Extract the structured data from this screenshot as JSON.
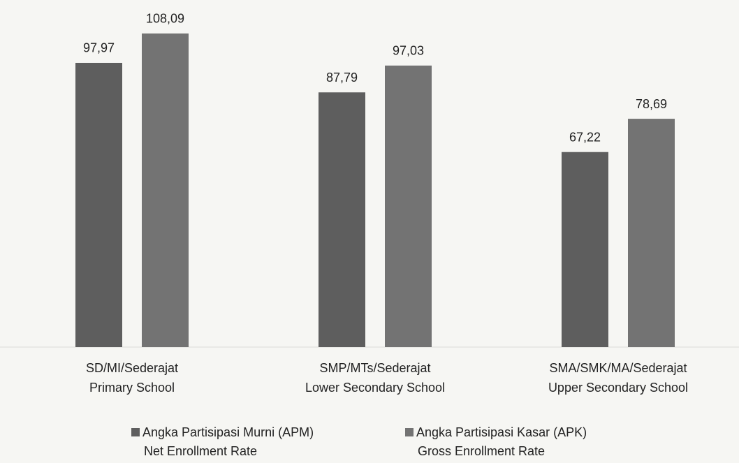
{
  "chart_data": {
    "type": "bar",
    "categories": [
      [
        "SD/MI/Sederajat",
        "Primary School"
      ],
      [
        "SMP/MTs/Sederajat",
        "Lower Secondary School"
      ],
      [
        "SMA/SMK/MA/Sederajat",
        "Upper Secondary School"
      ]
    ],
    "series": [
      {
        "name": [
          "Angka Partisipasi Murni (APM)",
          "Net Enrollment Rate"
        ],
        "color": "#5e5e5e",
        "values": [
          97.97,
          87.79,
          67.22
        ],
        "value_labels": [
          "97,97",
          "87,79",
          "67,22"
        ]
      },
      {
        "name": [
          "Angka Partisipasi Kasar (APK)",
          "Gross Enrollment Rate"
        ],
        "color": "#737373",
        "values": [
          108.09,
          97.03,
          78.69
        ],
        "value_labels": [
          "108,09",
          "97,03",
          "78,69"
        ]
      }
    ],
    "ylim": [
      0,
      110
    ]
  }
}
